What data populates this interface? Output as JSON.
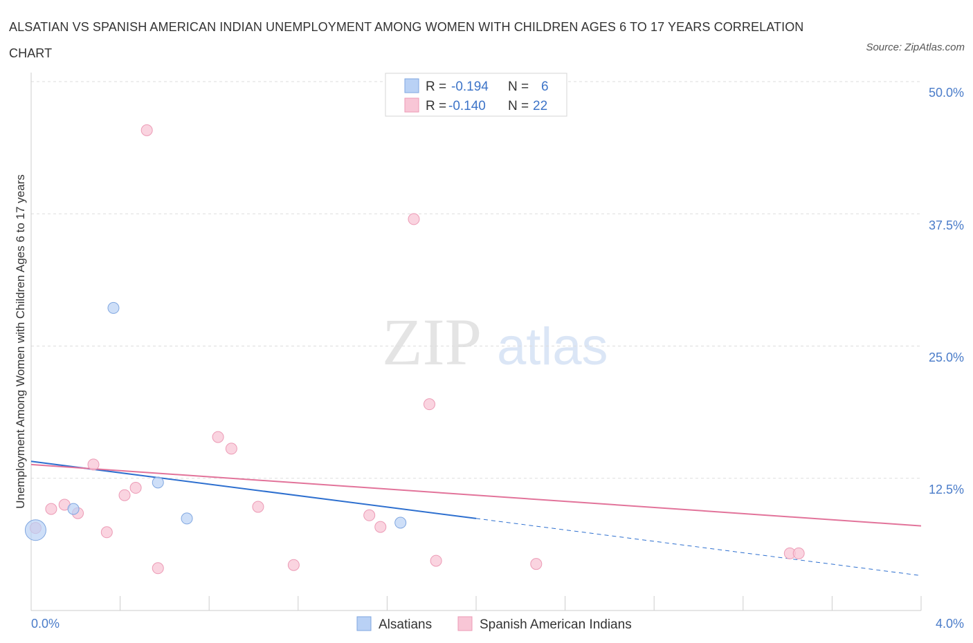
{
  "title": "ALSATIAN VS SPANISH AMERICAN INDIAN UNEMPLOYMENT AMONG WOMEN WITH CHILDREN AGES 6 TO 17 YEARS CORRELATION CHART",
  "source": "Source: ZipAtlas.com",
  "watermark": {
    "zip": "ZIP",
    "atlas": "atlas"
  },
  "colors": {
    "alsatian_fill": "#b9d1f5",
    "alsatian_stroke": "#7fa6e0",
    "alsatian_line": "#2d6fcf",
    "spanish_fill": "#f8c6d6",
    "spanish_stroke": "#ec9ab5",
    "spanish_line": "#e2739a",
    "grid": "#dddddd",
    "tick_text": "#4a7cc9"
  },
  "legend": {
    "rows": [
      {
        "r_label": "R =",
        "r_value": "-0.194",
        "n_label": "N =",
        "n_value": "6"
      },
      {
        "r_label": "R =",
        "r_value": "-0.140",
        "n_label": "N =",
        "n_value": "22"
      }
    ]
  },
  "chart_data": {
    "type": "scatter",
    "title": "ALSATIAN VS SPANISH AMERICAN INDIAN UNEMPLOYMENT AMONG WOMEN WITH CHILDREN AGES 6 TO 17 YEARS CORRELATION CHART",
    "xlabel": "",
    "ylabel": "Unemployment Among Women with Children Ages 6 to 17 years",
    "xlim": [
      0,
      4.0
    ],
    "ylim": [
      0,
      50
    ],
    "x_tick_labels": [
      "0.0%",
      "4.0%"
    ],
    "y_ticks": [
      12.5,
      25.0,
      37.5,
      50.0
    ],
    "y_tick_labels": [
      "12.5%",
      "25.0%",
      "37.5%",
      "50.0%"
    ],
    "grid": true,
    "series": [
      {
        "name": "Alsatians",
        "r": -0.194,
        "n": 6,
        "points": [
          {
            "x": 0.02,
            "y": 7.6,
            "size": "large"
          },
          {
            "x": 0.37,
            "y": 28.6
          },
          {
            "x": 0.19,
            "y": 9.6
          },
          {
            "x": 0.57,
            "y": 12.1
          },
          {
            "x": 0.7,
            "y": 8.7
          },
          {
            "x": 1.66,
            "y": 8.3
          }
        ],
        "trend": {
          "x0": 0.0,
          "y0": 14.1,
          "x1": 2.0,
          "y1": 8.7,
          "dash_to_x": 4.0,
          "dash_to_y": 3.3
        }
      },
      {
        "name": "Spanish American Indians",
        "r": -0.14,
        "n": 22,
        "points": [
          {
            "x": 0.02,
            "y": 7.8
          },
          {
            "x": 0.09,
            "y": 9.6
          },
          {
            "x": 0.15,
            "y": 10.0
          },
          {
            "x": 0.21,
            "y": 9.2
          },
          {
            "x": 0.28,
            "y": 13.8
          },
          {
            "x": 0.34,
            "y": 7.4
          },
          {
            "x": 0.42,
            "y": 10.9
          },
          {
            "x": 0.47,
            "y": 11.6
          },
          {
            "x": 0.52,
            "y": 45.4
          },
          {
            "x": 0.57,
            "y": 4.0
          },
          {
            "x": 0.84,
            "y": 16.4
          },
          {
            "x": 0.9,
            "y": 15.3
          },
          {
            "x": 1.02,
            "y": 9.8
          },
          {
            "x": 1.18,
            "y": 4.3
          },
          {
            "x": 1.52,
            "y": 9.0
          },
          {
            "x": 1.57,
            "y": 7.9
          },
          {
            "x": 1.72,
            "y": 37.0
          },
          {
            "x": 1.79,
            "y": 19.5
          },
          {
            "x": 1.82,
            "y": 4.7
          },
          {
            "x": 2.27,
            "y": 4.4
          },
          {
            "x": 3.41,
            "y": 5.4
          },
          {
            "x": 3.45,
            "y": 5.4
          }
        ],
        "trend": {
          "x0": 0.0,
          "y0": 13.8,
          "x1": 4.0,
          "y1": 8.0
        }
      }
    ]
  }
}
